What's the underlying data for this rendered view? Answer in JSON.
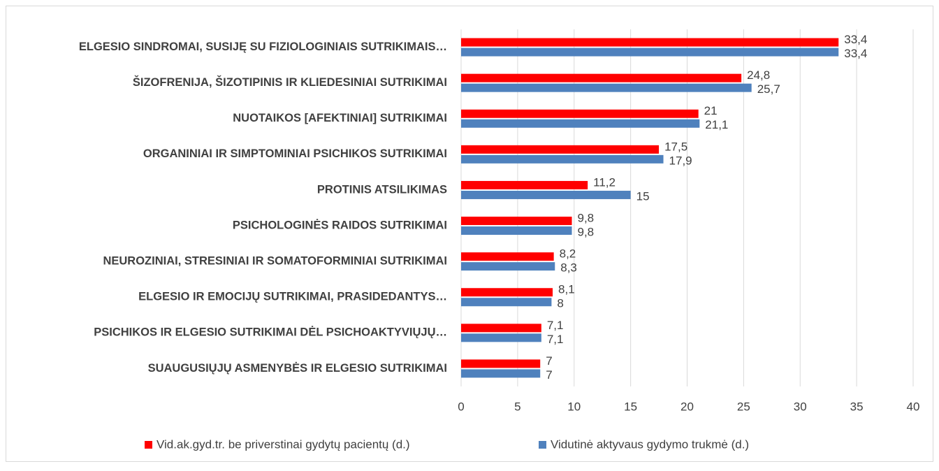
{
  "chart_data": {
    "type": "barh",
    "categories": [
      "ELGESIO SINDROMAI, SUSIJĘ SU FIZIOLOGINIAIS SUTRIKIMAIS…",
      "ŠIZOFRENIJA, ŠIZOTIPINIS IR KLIEDESINIAI SUTRIKIMAI",
      "NUOTAIKOS [AFEKTINIAI] SUTRIKIMAI",
      "ORGANINIAI IR SIMPTOMINIAI PSICHIKOS SUTRIKIMAI",
      "PROTINIS ATSILIKIMAS",
      "PSICHOLOGINĖS RAIDOS SUTRIKIMAI",
      "NEUROZINIAI, STRESINIAI IR SOMATOFORMINIAI SUTRIKIMAI",
      "ELGESIO IR EMOCIJŲ SUTRIKIMAI, PRASIDEDANTYS…",
      "PSICHIKOS IR ELGESIO SUTRIKIMAI DĖL PSICHOAKTYVIŲJŲ…",
      "SUAUGUSIŲJŲ ASMENYBĖS IR ELGESIO SUTRIKIMAI"
    ],
    "series": [
      {
        "name": "Vid.ak.gyd.tr. be priverstinai gydytų pacientų (d.)",
        "color": "#ff0000",
        "values": [
          33.4,
          24.8,
          21,
          17.5,
          11.2,
          9.8,
          8.2,
          8.1,
          7.1,
          7
        ],
        "value_labels": [
          "33,4",
          "24,8",
          "21",
          "17,5",
          "11,2",
          "9,8",
          "8,2",
          "8,1",
          "7,1",
          "7"
        ]
      },
      {
        "name": "Vidutinė aktyvaus gydymo trukmė (d.)",
        "color": "#4f81bd",
        "values": [
          33.4,
          25.7,
          21.1,
          17.9,
          15,
          9.8,
          8.3,
          8,
          7.1,
          7
        ],
        "value_labels": [
          "33,4",
          "25,7",
          "21,1",
          "17,9",
          "15",
          "9,8",
          "8,3",
          "8",
          "7,1",
          "7"
        ]
      }
    ],
    "xlim": [
      0,
      40
    ],
    "xticks": [
      0,
      5,
      10,
      15,
      20,
      25,
      30,
      35,
      40
    ],
    "grid": true,
    "legend": "bottom"
  }
}
